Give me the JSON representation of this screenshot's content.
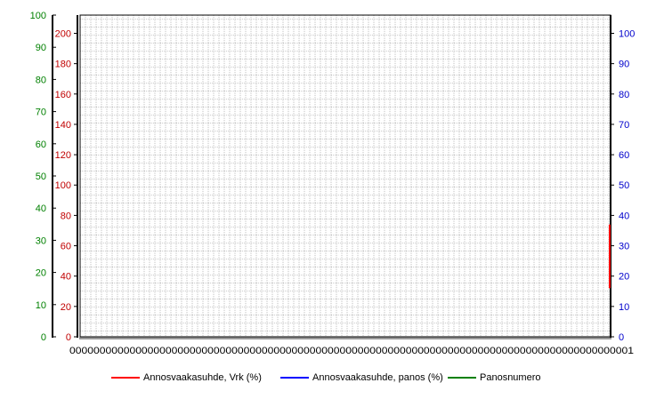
{
  "chart_data": {
    "type": "line",
    "grid": true,
    "legend_placement": "bottom",
    "axes": {
      "green_outer_left": {
        "min": 0,
        "max": 100,
        "ticks": [
          "0",
          "10",
          "20",
          "30",
          "40",
          "50",
          "60",
          "70",
          "80",
          "90",
          "100"
        ],
        "color": "#008000"
      },
      "red_inner_left": {
        "min": 0,
        "max": 212,
        "ticks": [
          "0",
          "20",
          "40",
          "60",
          "80",
          "100",
          "120",
          "140",
          "160",
          "180",
          "200"
        ],
        "color": "#c00000"
      },
      "blue_right": {
        "min": 0,
        "max": 106,
        "ticks": [
          "0",
          "10",
          "20",
          "30",
          "40",
          "50",
          "60",
          "70",
          "80",
          "90",
          "100"
        ],
        "color": "#0000cc"
      }
    },
    "x_tick_labels_visible": "0000000000000000000000000000000000000000000000000000000000000000000000000000000000000000000001",
    "series": [
      {
        "name": "Annosvaakasuhde, Vrk (%)",
        "color": "#ff0000",
        "axis": "red_inner_left",
        "segment_at_right_edge": [
          32,
          74
        ]
      },
      {
        "name": "Annosvaakasuhde, panos (%)",
        "color": "#0000ff",
        "axis": "blue_right"
      },
      {
        "name": "Panosnumero",
        "color": "#008000",
        "axis": "green_outer_left"
      }
    ]
  }
}
